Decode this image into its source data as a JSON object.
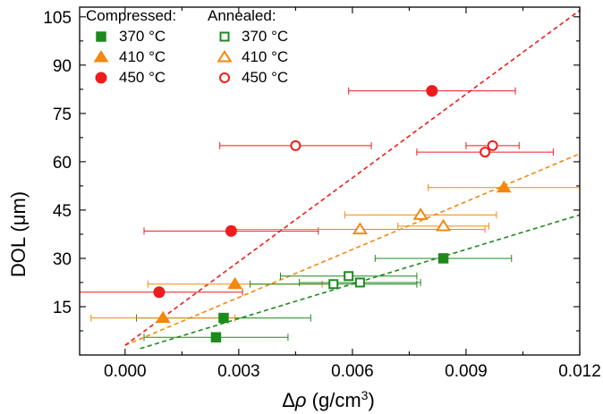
{
  "chart_data": {
    "type": "scatter",
    "xlabel": "Δρ (g/cm3)",
    "xlabel_parts": {
      "symbol": "Δ",
      "var": "ρ",
      "unit_open": " (g/cm",
      "sup": "3",
      "unit_close": ")"
    },
    "ylabel": "DOL (μm)",
    "xlim": [
      -0.0012,
      0.012
    ],
    "ylim": [
      0,
      108
    ],
    "x_ticks": [
      0.0,
      0.003,
      0.006,
      0.009,
      0.012
    ],
    "x_tick_labels": [
      "0.000",
      "0.003",
      "0.006",
      "0.009",
      "0.012"
    ],
    "y_ticks": [
      15,
      30,
      45,
      60,
      75,
      90,
      105
    ],
    "y_tick_labels": [
      "15",
      "30",
      "45",
      "60",
      "75",
      "90",
      "105"
    ],
    "legend": {
      "position": "top-left",
      "group_titles": [
        "Compressed:",
        "Annealed:"
      ]
    },
    "series": [
      {
        "name": "370 °C",
        "group": "Compressed",
        "marker": "square",
        "filled": true,
        "color": "#1e8a1e",
        "points": [
          {
            "x": 0.0024,
            "y": 5.5,
            "xerr": 0.0019
          },
          {
            "x": 0.0026,
            "y": 11.5,
            "xerr": 0.0023
          },
          {
            "x": 0.0084,
            "y": 30,
            "xerr": 0.0018
          }
        ]
      },
      {
        "name": "410 °C",
        "group": "Compressed",
        "marker": "triangle",
        "filled": true,
        "color": "#f5870f",
        "points": [
          {
            "x": 0.001,
            "y": 11.5,
            "xerr": 0.0019
          },
          {
            "x": 0.0029,
            "y": 22,
            "xerr": 0.0023
          },
          {
            "x": 0.01,
            "y": 52,
            "xerr": 0.002
          }
        ]
      },
      {
        "name": "450 °C",
        "group": "Compressed",
        "marker": "circle",
        "filled": true,
        "color": "#ee1c1c",
        "points": [
          {
            "x": 0.0009,
            "y": 19.5,
            "xerr": 0.0022
          },
          {
            "x": 0.0028,
            "y": 38.5,
            "xerr": 0.0023
          },
          {
            "x": 0.0081,
            "y": 82,
            "xerr": 0.0022
          }
        ]
      },
      {
        "name": "370 °C",
        "group": "Annealed",
        "marker": "square",
        "filled": false,
        "color": "#1e8a1e",
        "points": [
          {
            "x": 0.0055,
            "y": 22,
            "xerr": 0.0022
          },
          {
            "x": 0.0059,
            "y": 24.5,
            "xerr": 0.0018
          },
          {
            "x": 0.0062,
            "y": 22.5,
            "xerr": 0.0016
          }
        ]
      },
      {
        "name": "410 °C",
        "group": "Annealed",
        "marker": "triangle",
        "filled": false,
        "color": "#f5870f",
        "points": [
          {
            "x": 0.0062,
            "y": 39,
            "xerr": 0.0033
          },
          {
            "x": 0.0078,
            "y": 43.5,
            "xerr": 0.002
          },
          {
            "x": 0.0084,
            "y": 40,
            "xerr": 0.0012
          }
        ]
      },
      {
        "name": "450 °C",
        "group": "Annealed",
        "marker": "circle",
        "filled": false,
        "color": "#ee1c1c",
        "points": [
          {
            "x": 0.0045,
            "y": 65,
            "xerr": 0.002
          },
          {
            "x": 0.0095,
            "y": 63,
            "xerr": 0.0018
          },
          {
            "x": 0.0097,
            "y": 65,
            "xerr": 0.0007
          }
        ]
      }
    ],
    "fit_lines": [
      {
        "series": "370 °C",
        "color": "#1e8a1e",
        "style": "dashed",
        "x": [
          0.0004,
          0.012
        ],
        "y": [
          2,
          43.5
        ]
      },
      {
        "series": "410 °C",
        "color": "#f5870f",
        "style": "dashed",
        "x": [
          0.0,
          0.012
        ],
        "y": [
          3,
          62.5
        ]
      },
      {
        "series": "450 °C",
        "color": "#ee1c1c",
        "style": "dashed",
        "x": [
          0.0,
          0.012
        ],
        "y": [
          3,
          107
        ]
      }
    ]
  }
}
